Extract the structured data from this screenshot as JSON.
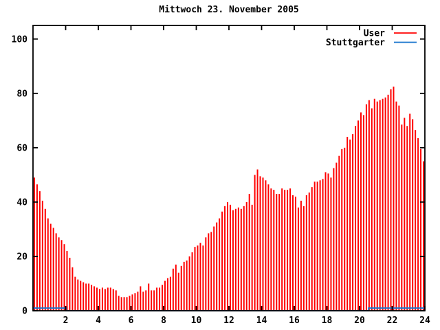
{
  "title": "Mittwoch 23. November 2005",
  "colors": {
    "user_series": "#ff0000",
    "stuttgarter_series": "#1874cd",
    "axis": "#000000",
    "background": "#ffffff",
    "text": "#000000"
  },
  "legend": {
    "position": "top-right-inside",
    "entries": [
      {
        "label": "User",
        "color": "#ff0000"
      },
      {
        "label": "Stuttgarter",
        "color": "#1874cd"
      }
    ]
  },
  "chart_data": {
    "type": "bar",
    "title": "Mittwoch 23. November 2005",
    "xlabel": "",
    "ylabel": "",
    "x_unit": "hour of day",
    "xlim": [
      0,
      24
    ],
    "ylim": [
      0,
      105
    ],
    "x_ticks": [
      2,
      4,
      6,
      8,
      10,
      12,
      14,
      16,
      18,
      20,
      22,
      24
    ],
    "y_ticks": [
      0,
      20,
      40,
      60,
      80,
      100
    ],
    "grid": false,
    "legend_position": "top-right inside plot",
    "series": [
      {
        "name": "User",
        "style": "impulses",
        "color": "#ff0000",
        "interval_minutes": 10,
        "values": [
          49,
          46.5,
          44,
          40.5,
          37.5,
          34,
          32,
          30.5,
          28.5,
          27,
          26,
          24.5,
          22,
          19.5,
          16,
          12.5,
          11.5,
          11,
          10.5,
          10,
          10,
          9.5,
          9,
          8.5,
          8,
          8.5,
          8,
          8.5,
          8.5,
          8,
          7.5,
          5.5,
          5,
          5,
          5,
          5.5,
          6,
          6.5,
          7,
          9,
          7,
          7.5,
          10,
          7.5,
          7.5,
          8.5,
          8.5,
          9.5,
          11,
          12,
          12.5,
          15.5,
          17,
          14,
          16.5,
          18,
          18.5,
          20,
          21.5,
          23.5,
          24,
          25,
          24,
          27,
          28.5,
          29,
          31,
          32.5,
          34,
          36.5,
          38.5,
          40,
          39,
          37,
          37.5,
          38,
          37.5,
          38.5,
          40,
          43,
          39,
          50,
          52,
          49.5,
          49,
          48,
          46.5,
          45,
          44.5,
          43,
          43,
          45,
          44.5,
          44.5,
          45,
          42.5,
          42,
          38,
          40.5,
          38.5,
          42.5,
          43.5,
          45.5,
          47.5,
          47.5,
          48,
          48.5,
          51,
          50.5,
          49,
          52.5,
          54.5,
          57,
          59.5,
          60,
          64,
          63,
          65,
          68,
          70,
          73,
          72,
          76,
          77.5,
          74.5,
          78,
          77,
          77.5,
          78,
          78.5,
          79.5,
          81.5,
          82.5,
          77,
          75.5,
          68.5,
          71,
          68,
          72.5,
          70.5,
          66.5,
          63.5,
          59.5,
          55
        ]
      },
      {
        "name": "Stuttgarter",
        "style": "step-line",
        "color": "#1874cd",
        "points": [
          [
            0,
            1
          ],
          [
            2.02,
            1
          ],
          [
            2.02,
            0
          ],
          [
            20.55,
            0
          ],
          [
            20.55,
            1
          ],
          [
            24,
            1
          ]
        ]
      }
    ]
  }
}
